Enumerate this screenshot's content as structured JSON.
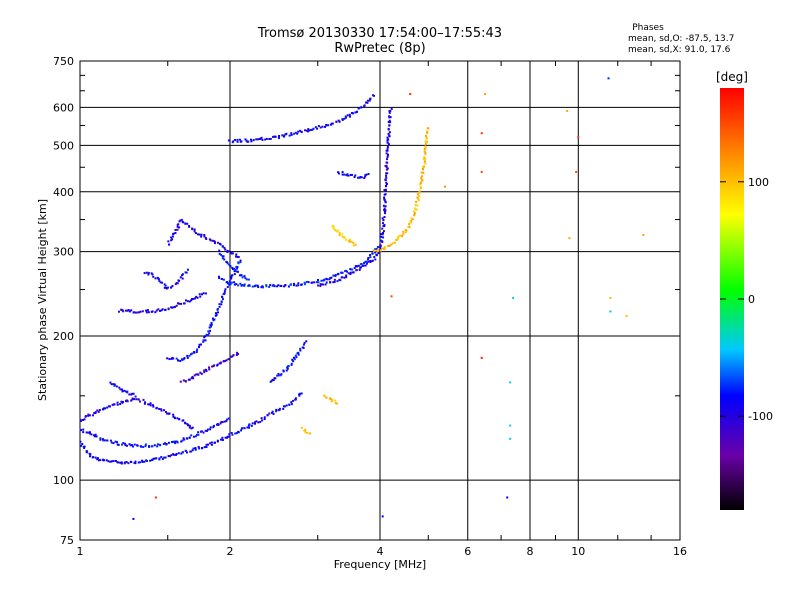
{
  "header": {
    "title": "Tromsø 20130330 17:54:00–17:55:43",
    "subtitle": "RwPretec (8p)"
  },
  "stats": {
    "heading": "Phases",
    "line_o": "mean, sd,O: -87.5, 13.7",
    "line_x": "mean, sd,X:  91.0, 17.6"
  },
  "colorbar": {
    "unit_label": "[deg]",
    "ticks": [
      {
        "value": 100,
        "label": "100"
      },
      {
        "value": 0,
        "label": "0"
      },
      {
        "value": -100,
        "label": "-100"
      }
    ],
    "range": [
      -180,
      180
    ],
    "colors": [
      "#000000",
      "#6a00a8",
      "#0000ff",
      "#00c8ff",
      "#00ff00",
      "#ffff00",
      "#ff8c00",
      "#ff0000"
    ]
  },
  "chart_data": {
    "type": "scatter",
    "title": "Tromsø 20130330 17:54:00–17:55:43",
    "subtitle": "RwPretec (8p)",
    "xlabel": "Frequency [MHz]",
    "ylabel": "Stationary phase Virtual Height [km]",
    "xscale": "log",
    "yscale": "log",
    "xlim": [
      1,
      16
    ],
    "ylim": [
      75,
      750
    ],
    "xticks": [
      1,
      2,
      4,
      6,
      8,
      10,
      16
    ],
    "yticks": [
      75,
      100,
      200,
      300,
      400,
      500,
      600,
      750
    ],
    "x_gridlines": [
      2,
      4,
      6,
      8,
      10
    ],
    "y_gridlines": [
      100,
      200,
      300,
      400,
      500,
      600
    ],
    "grid": true,
    "color_by": "phase_deg",
    "traces": [
      {
        "points": [
          [
            1.0,
            120
          ],
          [
            1.05,
            112
          ],
          [
            1.1,
            110
          ],
          [
            1.2,
            109
          ],
          [
            1.3,
            109
          ],
          [
            1.4,
            110
          ],
          [
            1.5,
            112
          ],
          [
            1.6,
            114
          ],
          [
            1.7,
            116
          ],
          [
            1.8,
            118
          ],
          [
            1.9,
            121
          ],
          [
            2.0,
            124
          ],
          [
            2.1,
            127
          ],
          [
            2.2,
            130
          ],
          [
            2.3,
            133
          ],
          [
            2.4,
            137
          ],
          [
            2.5,
            140
          ],
          [
            2.6,
            143
          ],
          [
            2.7,
            147
          ],
          [
            2.8,
            153
          ]
        ],
        "phase": -105
      },
      {
        "points": [
          [
            1.0,
            128
          ],
          [
            1.1,
            122
          ],
          [
            1.2,
            119
          ],
          [
            1.3,
            118
          ],
          [
            1.4,
            118
          ],
          [
            1.5,
            119
          ],
          [
            1.6,
            121
          ],
          [
            1.7,
            124
          ],
          [
            1.8,
            127
          ],
          [
            1.9,
            131
          ],
          [
            2.0,
            135
          ]
        ],
        "phase": -100
      },
      {
        "points": [
          [
            1.0,
            133
          ],
          [
            1.1,
            140
          ],
          [
            1.2,
            145
          ],
          [
            1.3,
            148
          ],
          [
            1.4,
            143
          ],
          [
            1.5,
            138
          ],
          [
            1.6,
            133
          ],
          [
            1.7,
            128
          ]
        ],
        "phase": -110
      },
      {
        "points": [
          [
            1.15,
            160
          ],
          [
            1.2,
            155
          ],
          [
            1.25,
            152
          ],
          [
            1.3,
            150
          ]
        ],
        "phase": -100
      },
      {
        "points": [
          [
            1.5,
            180
          ],
          [
            1.6,
            178
          ],
          [
            1.7,
            185
          ],
          [
            1.8,
            200
          ],
          [
            1.9,
            230
          ],
          [
            2.0,
            260
          ],
          [
            2.1,
            290
          ]
        ],
        "phase": -100
      },
      {
        "points": [
          [
            1.2,
            226
          ],
          [
            1.3,
            225
          ],
          [
            1.4,
            225
          ],
          [
            1.5,
            228
          ],
          [
            1.6,
            234
          ],
          [
            1.7,
            240
          ],
          [
            1.8,
            246
          ]
        ],
        "phase": -110
      },
      {
        "points": [
          [
            1.35,
            272
          ],
          [
            1.4,
            268
          ],
          [
            1.45,
            260
          ],
          [
            1.5,
            250
          ],
          [
            1.55,
            256
          ],
          [
            1.6,
            265
          ],
          [
            1.65,
            275
          ]
        ],
        "phase": -105
      },
      {
        "points": [
          [
            1.5,
            310
          ],
          [
            1.55,
            330
          ],
          [
            1.6,
            350
          ],
          [
            1.7,
            330
          ],
          [
            1.8,
            320
          ],
          [
            1.9,
            310
          ],
          [
            2.0,
            300
          ],
          [
            2.1,
            290
          ]
        ],
        "phase": -110
      },
      {
        "points": [
          [
            1.9,
            265
          ],
          [
            2.0,
            258
          ],
          [
            2.2,
            254
          ],
          [
            2.5,
            254
          ],
          [
            2.8,
            257
          ],
          [
            3.0,
            260
          ],
          [
            3.2,
            265
          ],
          [
            3.5,
            275
          ],
          [
            3.8,
            290
          ],
          [
            4.0,
            310
          ]
        ],
        "phase": -95
      },
      {
        "points": [
          [
            1.9,
            300
          ],
          [
            2.0,
            280
          ],
          [
            2.1,
            268
          ],
          [
            2.2,
            262
          ]
        ],
        "phase": -100
      },
      {
        "points": [
          [
            2.0,
            510
          ],
          [
            2.2,
            512
          ],
          [
            2.5,
            520
          ],
          [
            2.8,
            535
          ],
          [
            3.0,
            545
          ],
          [
            3.3,
            560
          ],
          [
            3.6,
            590
          ],
          [
            3.9,
            640
          ]
        ],
        "phase": -105
      },
      {
        "points": [
          [
            3.3,
            440
          ],
          [
            3.5,
            432
          ],
          [
            3.7,
            428
          ],
          [
            3.8,
            440
          ]
        ],
        "phase": -100
      },
      {
        "points": [
          [
            3.0,
            255
          ],
          [
            3.3,
            262
          ],
          [
            3.6,
            275
          ],
          [
            3.9,
            290
          ],
          [
            4.0,
            300
          ],
          [
            4.05,
            330
          ],
          [
            4.1,
            400
          ],
          [
            4.15,
            500
          ],
          [
            4.2,
            600
          ]
        ],
        "phase": -110
      },
      {
        "points": [
          [
            3.9,
            300
          ],
          [
            4.0,
            302
          ],
          [
            4.2,
            310
          ],
          [
            4.5,
            330
          ],
          [
            4.7,
            360
          ],
          [
            4.8,
            400
          ],
          [
            4.9,
            450
          ],
          [
            4.95,
            500
          ],
          [
            5.0,
            550
          ]
        ],
        "phase": 100
      },
      {
        "points": [
          [
            3.2,
            340
          ],
          [
            3.3,
            330
          ],
          [
            3.4,
            320
          ],
          [
            3.5,
            315
          ],
          [
            3.6,
            308
          ]
        ],
        "phase": 90
      },
      {
        "points": [
          [
            3.1,
            150
          ],
          [
            3.2,
            147
          ],
          [
            3.3,
            144
          ]
        ],
        "phase": 95
      },
      {
        "points": [
          [
            2.8,
            128
          ],
          [
            2.9,
            125
          ]
        ],
        "phase": 100
      },
      {
        "points": [
          [
            2.4,
            160
          ],
          [
            2.5,
            165
          ],
          [
            2.6,
            170
          ],
          [
            2.7,
            180
          ],
          [
            2.8,
            190
          ],
          [
            2.85,
            195
          ]
        ],
        "phase": -100
      },
      {
        "points": [
          [
            1.6,
            160
          ],
          [
            1.7,
            165
          ],
          [
            1.8,
            170
          ],
          [
            1.9,
            175
          ],
          [
            2.0,
            180
          ],
          [
            2.1,
            185
          ]
        ],
        "phase": -120
      }
    ],
    "scattered_points": [
      {
        "x": 1.28,
        "y": 83,
        "phase": -100
      },
      {
        "x": 1.42,
        "y": 92,
        "phase": 160
      },
      {
        "x": 4.05,
        "y": 84,
        "phase": -100
      },
      {
        "x": 4.22,
        "y": 242,
        "phase": 150
      },
      {
        "x": 6.5,
        "y": 640,
        "phase": 110
      },
      {
        "x": 6.4,
        "y": 530,
        "phase": 160
      },
      {
        "x": 6.4,
        "y": 440,
        "phase": 150
      },
      {
        "x": 6.4,
        "y": 180,
        "phase": 170
      },
      {
        "x": 7.2,
        "y": 92,
        "phase": -100
      },
      {
        "x": 7.4,
        "y": 240,
        "phase": -40
      },
      {
        "x": 7.3,
        "y": 160,
        "phase": -40
      },
      {
        "x": 7.3,
        "y": 130,
        "phase": -40
      },
      {
        "x": 7.3,
        "y": 122,
        "phase": -40
      },
      {
        "x": 9.5,
        "y": 590,
        "phase": 110
      },
      {
        "x": 10.0,
        "y": 520,
        "phase": 160
      },
      {
        "x": 9.9,
        "y": 440,
        "phase": 150
      },
      {
        "x": 9.6,
        "y": 320,
        "phase": 110
      },
      {
        "x": 11.5,
        "y": 690,
        "phase": -90
      },
      {
        "x": 11.6,
        "y": 240,
        "phase": 100
      },
      {
        "x": 11.6,
        "y": 225,
        "phase": -40
      },
      {
        "x": 12.5,
        "y": 220,
        "phase": 100
      },
      {
        "x": 13.5,
        "y": 325,
        "phase": 110
      },
      {
        "x": 5.4,
        "y": 410,
        "phase": 120
      },
      {
        "x": 4.6,
        "y": 640,
        "phase": 160
      }
    ]
  }
}
